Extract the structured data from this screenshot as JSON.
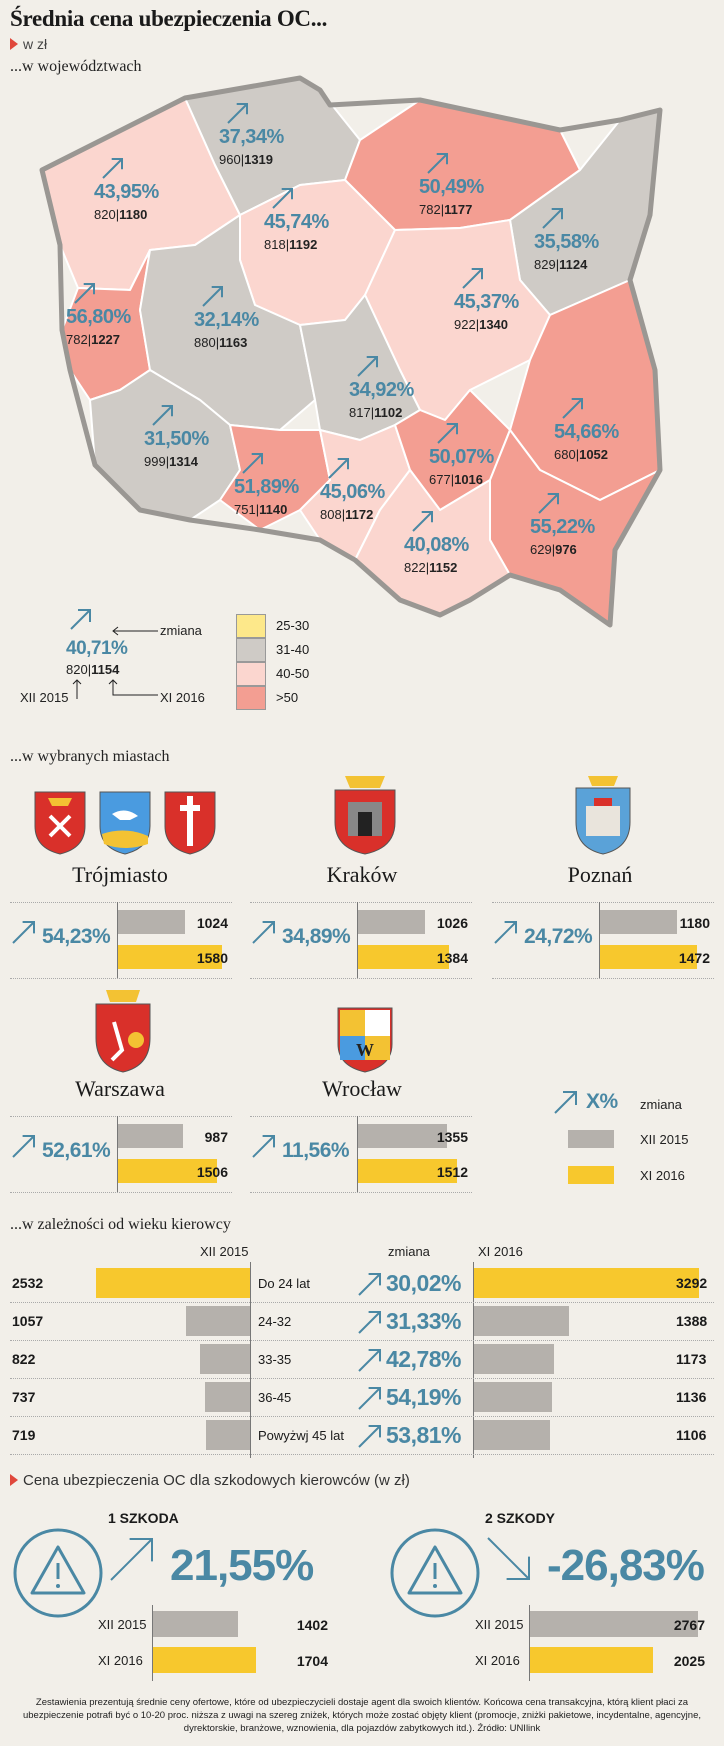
{
  "title": "Średnia cena ubezpieczenia OC...",
  "subtitle": "w zł",
  "sections": {
    "regions": "...w województwach",
    "cities": "...w wybranych miastach",
    "age": "...w zależności od wieku kierowcy",
    "claims": "Cena ubezpieczenia OC dla szkodowych kierowców (w zł)"
  },
  "colors": {
    "25-30": "#fde88a",
    "31-40": "#cfcbc6",
    "40-50": "#fbd6cf",
    "gt50": "#f39e92",
    "accent": "#4a88a4",
    "bar_grey": "#b5b1ac",
    "bar_yellow": "#f7c82d"
  },
  "chart_data": [
    {
      "type": "map",
      "regions": [
        {
          "pct": "43,95%",
          "v2015": "820",
          "v2016": "1180"
        },
        {
          "pct": "37,34%",
          "v2015": "960",
          "v2016": "1319"
        },
        {
          "pct": "50,49%",
          "v2015": "782",
          "v2016": "1177"
        },
        {
          "pct": "35,58%",
          "v2015": "829",
          "v2016": "1124"
        },
        {
          "pct": "45,74%",
          "v2015": "818",
          "v2016": "1192"
        },
        {
          "pct": "56,80%",
          "v2015": "782",
          "v2016": "1227"
        },
        {
          "pct": "32,14%",
          "v2015": "880",
          "v2016": "1163"
        },
        {
          "pct": "45,37%",
          "v2015": "922",
          "v2016": "1340"
        },
        {
          "pct": "34,92%",
          "v2015": "817",
          "v2016": "1102"
        },
        {
          "pct": "54,66%",
          "v2015": "680",
          "v2016": "1052"
        },
        {
          "pct": "31,50%",
          "v2015": "999",
          "v2016": "1314"
        },
        {
          "pct": "51,89%",
          "v2015": "751",
          "v2016": "1140"
        },
        {
          "pct": "45,06%",
          "v2015": "808",
          "v2016": "1172"
        },
        {
          "pct": "50,07%",
          "v2015": "677",
          "v2016": "1016"
        },
        {
          "pct": "55,22%",
          "v2015": "629",
          "v2016": "976"
        },
        {
          "pct": "40,08%",
          "v2015": "822",
          "v2016": "1152"
        }
      ],
      "legend_example": {
        "pct": "40,71%",
        "v2015": "820",
        "v2016": "1154",
        "label_change": "zmiana",
        "label_2015": "XII 2015",
        "label_2016": "XI 2016"
      },
      "scale": [
        "25-30",
        "31-40",
        "40-50",
        ">50"
      ]
    },
    {
      "type": "bar",
      "cities": [
        {
          "name": "Trójmiasto",
          "pct": "54,23%",
          "v2015": 1024,
          "v2016": 1580
        },
        {
          "name": "Kraków",
          "pct": "34,89%",
          "v2015": 1026,
          "v2016": 1384
        },
        {
          "name": "Poznań",
          "pct": "24,72%",
          "v2015": 1180,
          "v2016": 1472
        },
        {
          "name": "Warszawa",
          "pct": "52,61%",
          "v2015": 987,
          "v2016": 1506
        },
        {
          "name": "Wrocław",
          "pct": "11,56%",
          "v2015": 1355,
          "v2016": 1512
        }
      ],
      "legend": {
        "change_symbol": "X%",
        "change": "zmiana",
        "s2015": "XII 2015",
        "s2016": "XI 2016"
      }
    },
    {
      "type": "bar",
      "headers": {
        "left": "XII 2015",
        "mid": "zmiana",
        "right": "XI 2016"
      },
      "groups": [
        {
          "label": "Do 24 lat",
          "v2015": 2532,
          "pct": "30,02%",
          "v2016": 3292
        },
        {
          "label": "24-32",
          "v2015": 1057,
          "pct": "31,33%",
          "v2016": 1388
        },
        {
          "label": "33-35",
          "v2015": 822,
          "pct": "42,78%",
          "v2016": 1173
        },
        {
          "label": "36-45",
          "v2015": 737,
          "pct": "54,19%",
          "v2016": 1136
        },
        {
          "label": "Powyżwj 45 lat",
          "v2015": 719,
          "pct": "53,81%",
          "v2016": 1106
        }
      ]
    },
    {
      "type": "bar",
      "panels": [
        {
          "title": "1 SZKODA",
          "pct": "21,55%",
          "direction": "up",
          "rows": [
            {
              "label": "XII 2015",
              "value": 1402
            },
            {
              "label": "XI 2016",
              "value": 1704
            }
          ]
        },
        {
          "title": "2 SZKODY",
          "pct": "-26,83%",
          "direction": "down",
          "rows": [
            {
              "label": "XII 2015",
              "value": 2767
            },
            {
              "label": "XI 2016",
              "value": 2025
            }
          ]
        }
      ]
    }
  ],
  "footer": "Zestawienia prezentują średnie ceny ofertowe, które od ubezpieczycieli dostaje agent dla swoich klientów. Końcowa cena transakcyjna, którą klient płaci za ubezpieczenie potrafi być o 10-20 proc. niższa z uwagi na szereg zniżek, których może zostać objęty klient (promocje, zniżki pakietowe, incydentalne, agencyjne, dyrektorskie, branżowe, wznowienia, dla pojazdów zabytkowych itd.). Źródło: UNIlink"
}
